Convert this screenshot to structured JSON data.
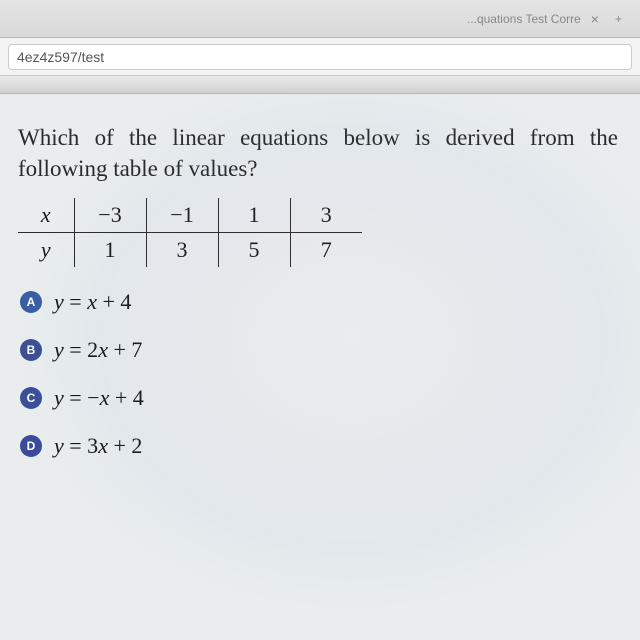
{
  "browser": {
    "tab_title_fragment": "...quations Test Corre",
    "url_fragment": "4ez4z597/test"
  },
  "question": {
    "prompt": "Which of the linear equations below is derived from the following table of values?",
    "table": {
      "type": "table",
      "row_labels": [
        "x",
        "y"
      ],
      "columns": [
        {
          "x": "−3",
          "y": "1"
        },
        {
          "x": "−1",
          "y": "3"
        },
        {
          "x": "1",
          "y": "5"
        },
        {
          "x": "3",
          "y": "7"
        }
      ],
      "border_color": "#2a2a2a",
      "text_color": "#1a1a1a",
      "fontsize": 22
    },
    "choices": [
      {
        "letter": "A",
        "equation": "y = x + 4"
      },
      {
        "letter": "B",
        "equation": "y = 2x + 7"
      },
      {
        "letter": "C",
        "equation": "y = −x + 4"
      },
      {
        "letter": "D",
        "equation": "y = 3x + 2"
      }
    ],
    "bubble_color": "#3b4fa0",
    "bubble_text_color": "#ffffff"
  },
  "colors": {
    "page_bg": "#e9edee",
    "text": "#2a2a2a"
  }
}
